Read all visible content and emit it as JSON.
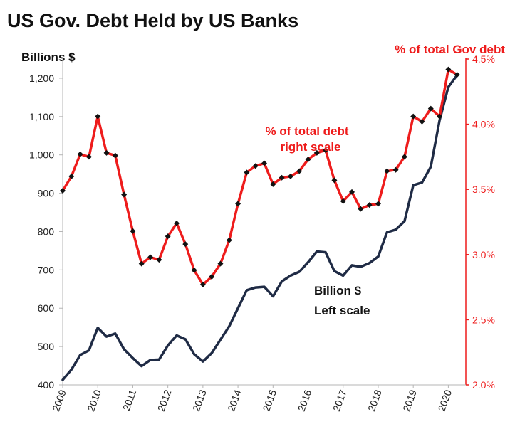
{
  "chart_data": {
    "type": "line",
    "title": "US Gov. Debt Held by US Banks",
    "left_axis": {
      "label": "Billions $",
      "min": 400,
      "max": 1250,
      "ticks": [
        400,
        500,
        600,
        700,
        800,
        900,
        1000,
        1100,
        1200
      ],
      "tick_labels": [
        "400",
        "500",
        "600",
        "700",
        "800",
        "900",
        "1,000",
        "1,100",
        "1,200"
      ]
    },
    "right_axis": {
      "label": "% of total Gov debt",
      "min": 2.0,
      "max": 4.5,
      "ticks": [
        2.0,
        2.5,
        3.0,
        3.5,
        4.0,
        4.5
      ],
      "tick_labels": [
        "2.0%",
        "2.5%",
        "3.0%",
        "3.5%",
        "4.0%",
        "4.5%"
      ],
      "color": "#ee1c1c"
    },
    "x_axis": {
      "min": 2009,
      "max": 2020.5,
      "tick_labels": [
        "2009",
        "2010",
        "2011",
        "2012",
        "2013",
        "2014",
        "2015",
        "2016",
        "2017",
        "2018",
        "2019",
        "2020"
      ]
    },
    "grid": false,
    "series": [
      {
        "name": "Billion $",
        "axis": "left",
        "color": "#1f2b45",
        "markers": false,
        "points": [
          [
            2009.0,
            413
          ],
          [
            2009.25,
            440
          ],
          [
            2009.5,
            478
          ],
          [
            2009.75,
            490
          ],
          [
            2010.0,
            549
          ],
          [
            2010.25,
            526
          ],
          [
            2010.5,
            534
          ],
          [
            2010.75,
            493
          ],
          [
            2011.0,
            470
          ],
          [
            2011.25,
            449
          ],
          [
            2011.5,
            465
          ],
          [
            2011.75,
            466
          ],
          [
            2012.0,
            503
          ],
          [
            2012.25,
            529
          ],
          [
            2012.5,
            519
          ],
          [
            2012.75,
            480
          ],
          [
            2013.0,
            461
          ],
          [
            2013.25,
            483
          ],
          [
            2013.5,
            518
          ],
          [
            2013.75,
            553
          ],
          [
            2014.0,
            600
          ],
          [
            2014.25,
            647
          ],
          [
            2014.5,
            654
          ],
          [
            2014.75,
            656
          ],
          [
            2015.0,
            631
          ],
          [
            2015.25,
            670
          ],
          [
            2015.5,
            685
          ],
          [
            2015.75,
            695
          ],
          [
            2016.0,
            720
          ],
          [
            2016.25,
            748
          ],
          [
            2016.5,
            746
          ],
          [
            2016.75,
            697
          ],
          [
            2017.0,
            685
          ],
          [
            2017.25,
            712
          ],
          [
            2017.5,
            708
          ],
          [
            2017.75,
            718
          ],
          [
            2018.0,
            735
          ],
          [
            2018.25,
            798
          ],
          [
            2018.5,
            805
          ],
          [
            2018.75,
            827
          ],
          [
            2019.0,
            921
          ],
          [
            2019.25,
            928
          ],
          [
            2019.5,
            969
          ],
          [
            2019.75,
            1090
          ],
          [
            2020.0,
            1177
          ],
          [
            2020.25,
            1208
          ]
        ]
      },
      {
        "name": "% of total debt right scale",
        "axis": "right",
        "color": "#ee1c1c",
        "markers": true,
        "points": [
          [
            2009.0,
            3.49
          ],
          [
            2009.25,
            3.6
          ],
          [
            2009.5,
            3.77
          ],
          [
            2009.75,
            3.75
          ],
          [
            2010.0,
            4.06
          ],
          [
            2010.25,
            3.78
          ],
          [
            2010.5,
            3.76
          ],
          [
            2010.75,
            3.46
          ],
          [
            2011.0,
            3.18
          ],
          [
            2011.25,
            2.93
          ],
          [
            2011.5,
            2.98
          ],
          [
            2011.75,
            2.96
          ],
          [
            2012.0,
            3.14
          ],
          [
            2012.25,
            3.24
          ],
          [
            2012.5,
            3.08
          ],
          [
            2012.75,
            2.88
          ],
          [
            2013.0,
            2.77
          ],
          [
            2013.25,
            2.83
          ],
          [
            2013.5,
            2.93
          ],
          [
            2013.75,
            3.11
          ],
          [
            2014.0,
            3.39
          ],
          [
            2014.25,
            3.63
          ],
          [
            2014.5,
            3.68
          ],
          [
            2014.75,
            3.7
          ],
          [
            2015.0,
            3.54
          ],
          [
            2015.25,
            3.59
          ],
          [
            2015.5,
            3.6
          ],
          [
            2015.75,
            3.64
          ],
          [
            2016.0,
            3.73
          ],
          [
            2016.25,
            3.78
          ],
          [
            2016.5,
            3.8
          ],
          [
            2016.75,
            3.57
          ],
          [
            2017.0,
            3.41
          ],
          [
            2017.25,
            3.48
          ],
          [
            2017.5,
            3.35
          ],
          [
            2017.75,
            3.38
          ],
          [
            2018.0,
            3.39
          ],
          [
            2018.25,
            3.64
          ],
          [
            2018.5,
            3.65
          ],
          [
            2018.75,
            3.75
          ],
          [
            2019.0,
            4.06
          ],
          [
            2019.25,
            4.02
          ],
          [
            2019.5,
            4.12
          ],
          [
            2019.75,
            4.06
          ],
          [
            2020.0,
            4.42
          ],
          [
            2020.25,
            4.38
          ]
        ]
      }
    ],
    "annotations": [
      {
        "text_lines": [
          "% of total debt",
          "right scale"
        ],
        "color": "#ee1c1c"
      },
      {
        "text_lines": [
          "Billion $",
          "Left scale"
        ],
        "color": "#111111"
      }
    ]
  }
}
